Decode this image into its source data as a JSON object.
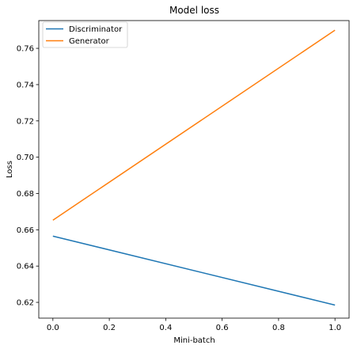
{
  "chart_data": {
    "type": "line",
    "title": "Model loss",
    "xlabel": "Mini-batch",
    "ylabel": "Loss",
    "xlim": [
      -0.05,
      1.05
    ],
    "ylim": [
      0.6113,
      0.7753
    ],
    "xticks": [
      0.0,
      0.2,
      0.4,
      0.6,
      0.8,
      1.0
    ],
    "xtick_labels": [
      "0.0",
      "0.2",
      "0.4",
      "0.6",
      "0.8",
      "1.0"
    ],
    "yticks": [
      0.62,
      0.64,
      0.66,
      0.68,
      0.7,
      0.72,
      0.74,
      0.76
    ],
    "ytick_labels": [
      "0.62",
      "0.64",
      "0.66",
      "0.68",
      "0.70",
      "0.72",
      "0.74",
      "0.76"
    ],
    "grid": false,
    "legend_position": "top-left",
    "series": [
      {
        "name": "Discriminator",
        "color": "#1f77b4",
        "x": [
          0.0,
          1.0
        ],
        "y": [
          0.6565,
          0.6185
        ]
      },
      {
        "name": "Generator",
        "color": "#ff7f0e",
        "x": [
          0.0,
          1.0
        ],
        "y": [
          0.6653,
          0.77
        ]
      }
    ]
  }
}
